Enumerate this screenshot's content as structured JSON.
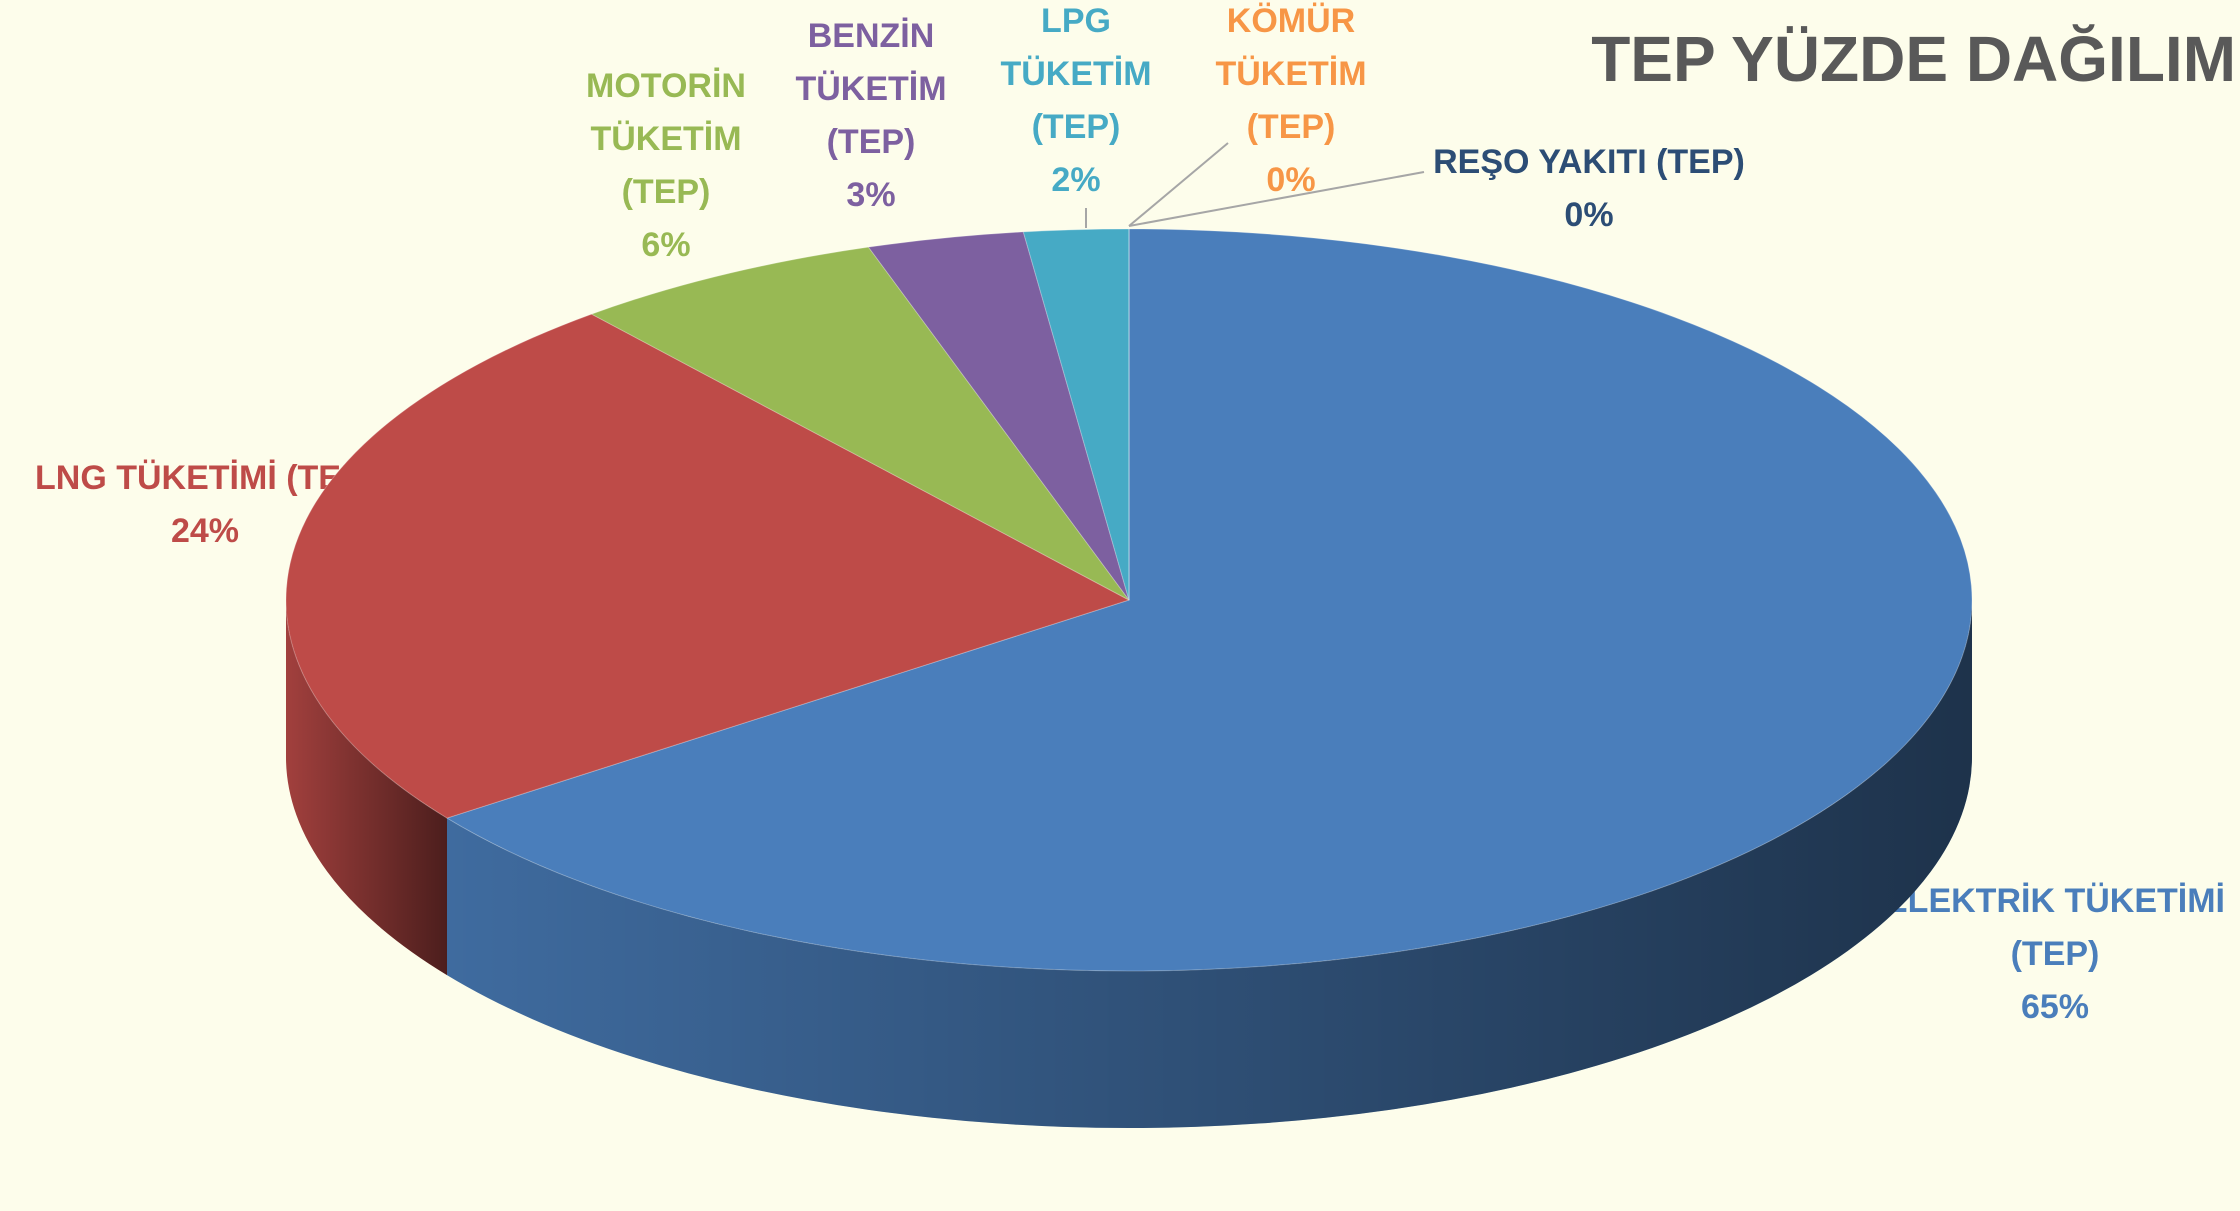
{
  "chart_data": {
    "type": "pie",
    "title": "TEP YÜZDE DAĞILIM",
    "categories": [
      "ELEKTRİK TÜKETİMİ (TEP)",
      "LNG TÜKETİMİ (TEP)",
      "MOTORİN TÜKETİM (TEP)",
      "BENZİN TÜKETİM (TEP)",
      "LPG TÜKETİM (TEP)",
      "KÖMÜR TÜKETİM (TEP)",
      "REŞO YAKITI (TEP)"
    ],
    "values": [
      65,
      24,
      6,
      3,
      2,
      0,
      0
    ],
    "value_labels": [
      "65%",
      "24%",
      "6%",
      "3%",
      "2%",
      "0%",
      "0%"
    ],
    "colors": [
      "#4a7ebb",
      "#be4b48",
      "#98b954",
      "#7d60a0",
      "#46aac5",
      "#f79646",
      "#2c4d75"
    ]
  }
}
